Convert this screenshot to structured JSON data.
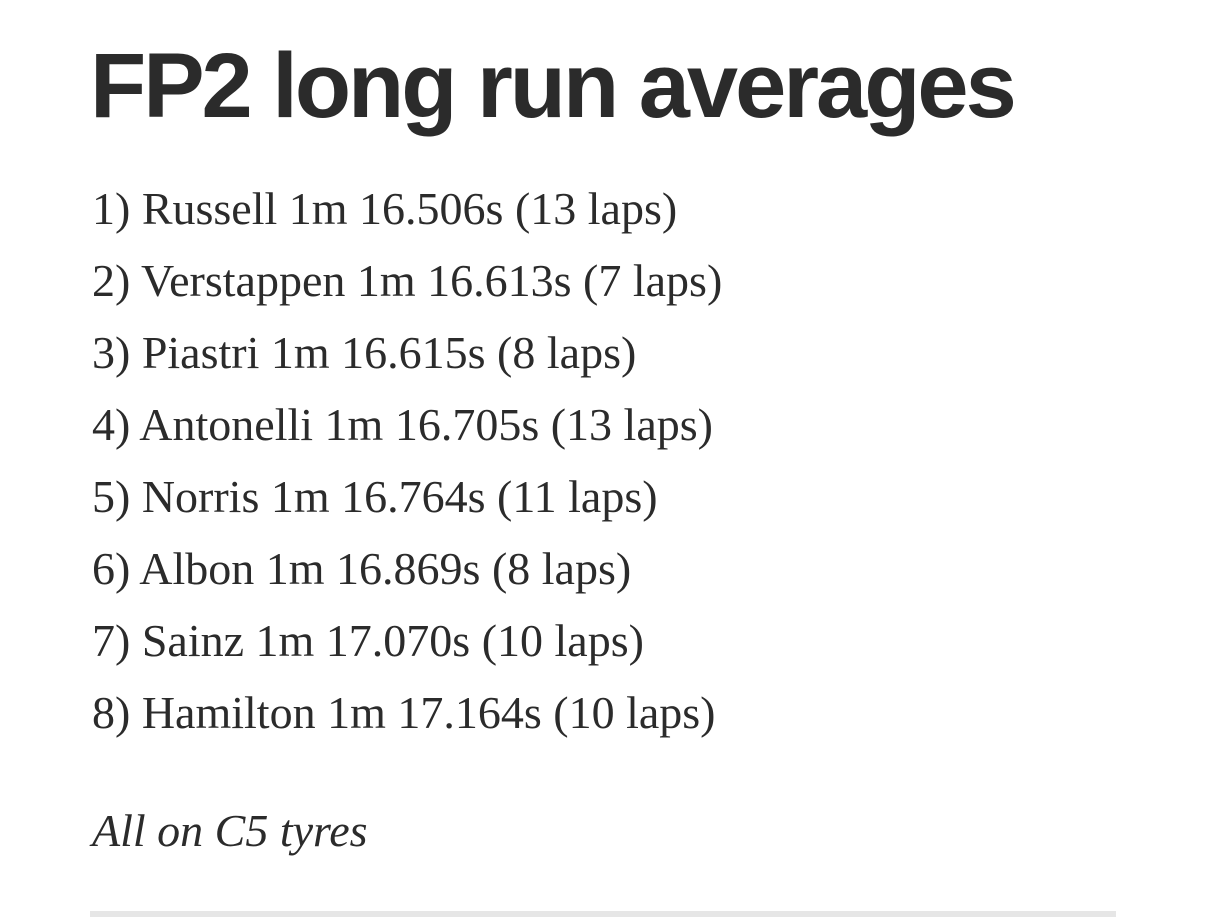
{
  "header": {
    "title": "FP2 long run averages"
  },
  "list": {
    "items": [
      "1) Russell 1m 16.506s (13 laps)",
      "2) Verstappen 1m 16.613s (7 laps)",
      "3) Piastri 1m 16.615s (8 laps)",
      "4) Antonelli 1m 16.705s (13 laps)",
      "5) Norris 1m 16.764s (11 laps)",
      "6) Albon 1m 16.869s (8 laps)",
      "7) Sainz 1m 17.070s (10 laps)",
      "8) Hamilton 1m 17.164s (10 laps)"
    ]
  },
  "note": "All on C5 tyres"
}
